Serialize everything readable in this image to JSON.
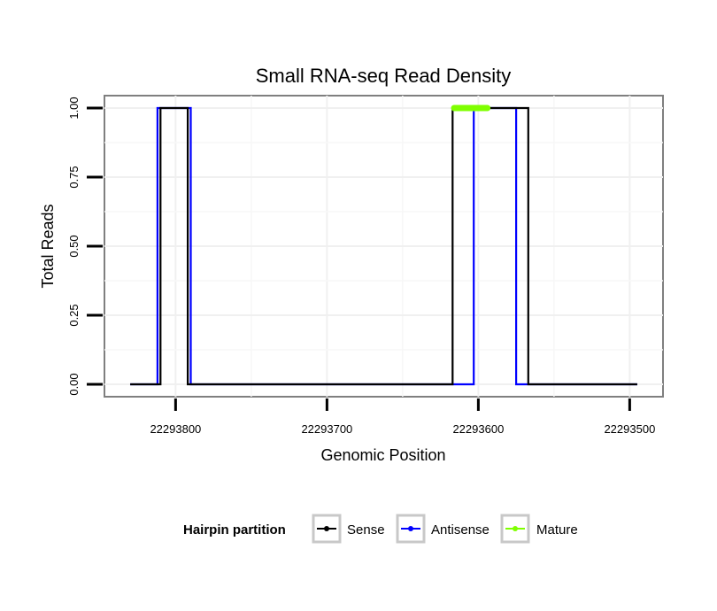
{
  "chart_data": {
    "type": "line",
    "title": "Small RNA-seq Read Density",
    "xlabel": "Genomic Position",
    "ylabel": "Total Reads",
    "x_reversed": true,
    "xlim": [
      22293847,
      22293478
    ],
    "ylim": [
      -0.045,
      1.045
    ],
    "x_ticks": [
      22293800,
      22293700,
      22293600,
      22293500
    ],
    "x_tick_labels": [
      "22293800",
      "22293700",
      "22293600",
      "22293500"
    ],
    "y_ticks": [
      0,
      0.25,
      0.5,
      0.75,
      1
    ],
    "y_tick_labels": [
      "0.00",
      "0.25",
      "0.50",
      "0.75",
      "1.00"
    ],
    "grid": true,
    "legend": {
      "title": "Hairpin partition",
      "placement": "bottom",
      "entries": [
        "Sense",
        "Antisense",
        "Mature"
      ]
    },
    "series": [
      {
        "name": "Antisense",
        "color": "#0000ff",
        "x": [
          22293830,
          22293812,
          22293812,
          22293790,
          22293790,
          22293770,
          22293770,
          22293603,
          22293603,
          22293575,
          22293575,
          22293564,
          22293564,
          22293495
        ],
        "y": [
          0,
          0,
          1,
          1,
          0,
          0,
          0,
          0,
          1,
          1,
          0,
          0,
          0,
          0
        ]
      },
      {
        "name": "Sense",
        "color": "#000000",
        "x": [
          22293830,
          22293810,
          22293810,
          22293792,
          22293792,
          22293617,
          22293617,
          22293567,
          22293567,
          22293495
        ],
        "y": [
          0,
          0,
          1,
          1,
          0,
          0,
          1,
          1,
          0,
          0
        ]
      },
      {
        "name": "Mature",
        "color": "#7fff00",
        "x": [
          22293616,
          22293594
        ],
        "y": [
          1,
          1
        ]
      }
    ]
  }
}
